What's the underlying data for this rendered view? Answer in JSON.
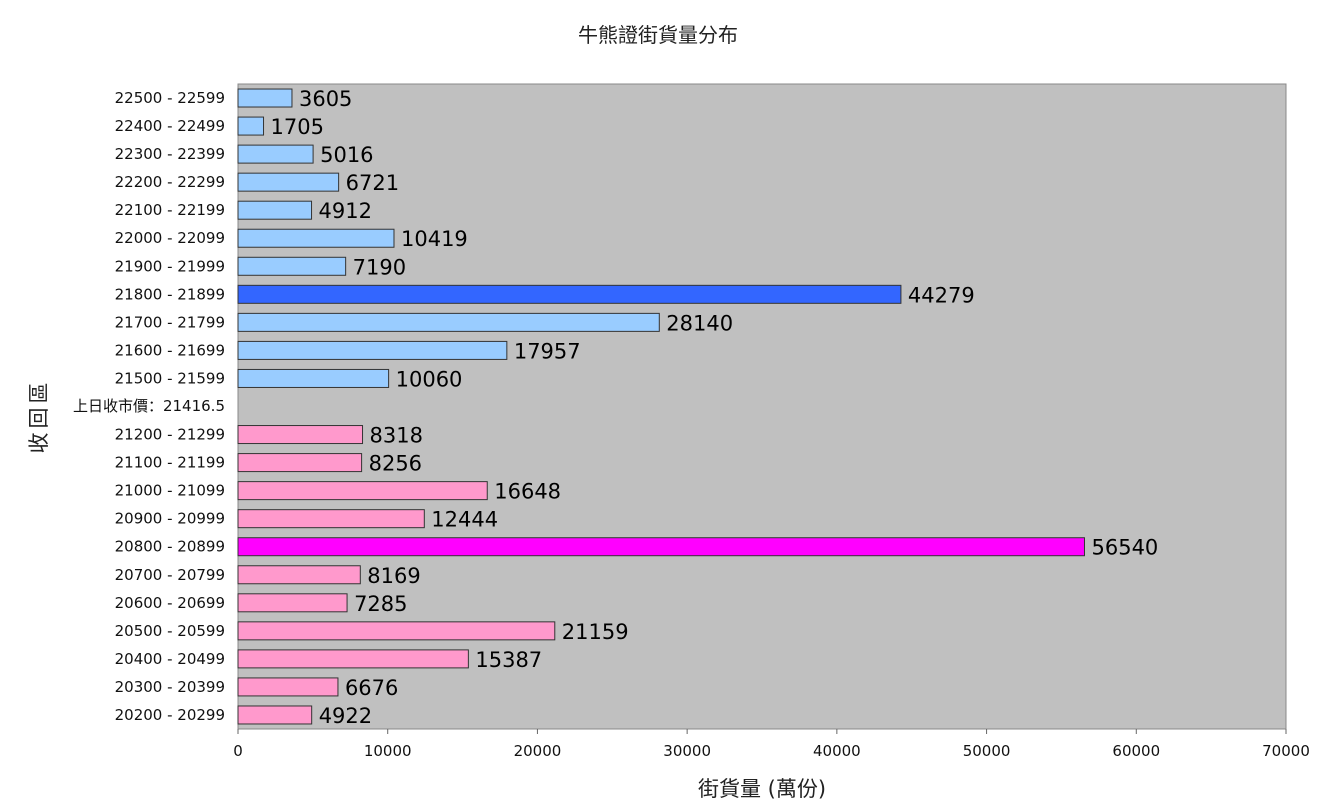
{
  "chart_data": {
    "type": "bar",
    "orientation": "horizontal",
    "title": "牛熊證街貨量分布",
    "xlabel": "街貨量 (萬份)",
    "ylabel": "收回區",
    "xlim": [
      0,
      70000
    ],
    "xticks": [
      0,
      10000,
      20000,
      30000,
      40000,
      50000,
      60000,
      70000
    ],
    "grid": false,
    "legend": "none",
    "colors": {
      "plot_background": "#c0c0c0",
      "bull": "#99ccff",
      "bull_highlight": "#3366ff",
      "bear": "#ff99cc",
      "bear_highlight": "#ff00ff"
    },
    "separator_label": "上日收市價：21416.5",
    "categories": [
      "22500 - 22599",
      "22400 - 22499",
      "22300 - 22399",
      "22200 - 22299",
      "22100 - 22199",
      "22000 - 22099",
      "21900 - 21999",
      "21800 - 21899",
      "21700 - 21799",
      "21600 - 21699",
      "21500 - 21599",
      "21200 - 21299",
      "21100 - 21199",
      "21000 - 21099",
      "20900 - 20999",
      "20800 - 20899",
      "20700 - 20799",
      "20600 - 20699",
      "20500 - 20599",
      "20400 - 20499",
      "20300 - 20399",
      "20200 - 20299"
    ],
    "values": [
      3605,
      1705,
      5016,
      6721,
      4912,
      10419,
      7190,
      44279,
      28140,
      17957,
      10060,
      8318,
      8256,
      16648,
      12444,
      56540,
      8169,
      7285,
      21159,
      15387,
      6676,
      4922
    ],
    "bar_kind": [
      "bull",
      "bull",
      "bull",
      "bull",
      "bull",
      "bull",
      "bull",
      "bull_highlight",
      "bull",
      "bull",
      "bull",
      "bear",
      "bear",
      "bear",
      "bear",
      "bear_highlight",
      "bear",
      "bear",
      "bear",
      "bear",
      "bear",
      "bear"
    ]
  }
}
